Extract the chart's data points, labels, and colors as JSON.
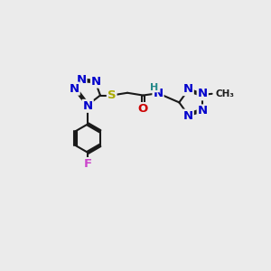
{
  "bg_color": "#ebebeb",
  "bond_color": "#1a1a1a",
  "bond_width": 1.5,
  "atom_colors": {
    "N": "#0000cc",
    "S": "#aaaa00",
    "O": "#cc0000",
    "F": "#cc44cc",
    "H": "#228888",
    "C": "#1a1a1a",
    "CH3": "#1a1a1a"
  },
  "font_size": 9.5,
  "font_size_small": 8.0,
  "xlim": [
    0,
    10
  ],
  "ylim": [
    0,
    10
  ]
}
